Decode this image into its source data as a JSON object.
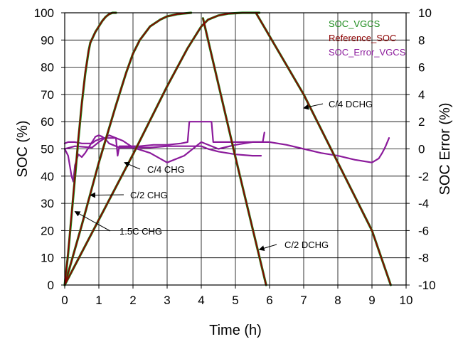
{
  "chart_data": {
    "type": "line",
    "title": "",
    "xlabel": "Time (h)",
    "ylabel": "SOC (%)",
    "y2label": "SOC Error (%)",
    "xlim": [
      0,
      10
    ],
    "ylim": [
      0,
      100
    ],
    "y2lim": [
      -10,
      10
    ],
    "x_ticks": [
      "0",
      "1",
      "2",
      "3",
      "4",
      "5",
      "6",
      "7",
      "8",
      "9",
      "10"
    ],
    "y_ticks": [
      "0",
      "10",
      "20",
      "30",
      "40",
      "50",
      "60",
      "70",
      "80",
      "90",
      "100"
    ],
    "y2_ticks": [
      "-10",
      "-8",
      "-6",
      "-4",
      "-2",
      "0",
      "2",
      "4",
      "6",
      "8",
      "10"
    ],
    "grid": true,
    "legend_position": "top-right",
    "colors": {
      "SOC_VGCS": "#1b8a1b",
      "Reference_SOC": "#8b0000",
      "SOC_Error_VGCS": "#8b1a9b",
      "grid": "#000000"
    },
    "legend": [
      "SOC_VGCS",
      "Reference_SOC",
      "SOC_Error_VGCS"
    ],
    "annotations": [
      {
        "text": "1.5C CHG",
        "anchor_x": 0.3,
        "anchor_y": 27
      },
      {
        "text": "C/2 CHG",
        "anchor_x": 0.75,
        "anchor_y": 33
      },
      {
        "text": "C/4 CHG",
        "anchor_x": 1.75,
        "anchor_y": 45
      },
      {
        "text": "C/4 DCHG",
        "anchor_x": 7.0,
        "anchor_y": 65
      },
      {
        "text": "C/2 DCHG",
        "anchor_x": 5.7,
        "anchor_y": 13
      }
    ],
    "series": [
      {
        "name": "Reference_SOC",
        "axis": "left",
        "segments": [
          {
            "x": [
              0,
              0.1,
              0.2,
              0.3,
              0.4,
              0.5,
              0.6,
              0.7,
              0.75,
              0.9,
              1.0,
              1.1,
              1.2,
              1.3,
              1.4,
              1.5
            ],
            "y": [
              0,
              12,
              26,
              40,
              54,
              67,
              78,
              86,
              89,
              93,
              95,
              97,
              98.5,
              99.5,
              100,
              100
            ]
          },
          {
            "x": [
              0,
              0.5,
              1.0,
              1.5,
              1.8,
              2.0,
              2.2,
              2.5,
              2.8,
              3.0,
              3.3,
              3.7
            ],
            "y": [
              0,
              22,
              45,
              66,
              78,
              85,
              90,
              95,
              97.5,
              98.7,
              99.5,
              100
            ]
          },
          {
            "x": [
              0,
              1.0,
              2.0,
              3.0,
              3.6,
              3.9,
              4.0,
              4.2,
              4.5,
              4.8,
              5.2,
              5.7
            ],
            "y": [
              0,
              24,
              48,
              73,
              87,
              93,
              95,
              97.5,
              99,
              99.7,
              100,
              100
            ]
          },
          {
            "x": [
              4.05,
              5.0,
              5.9
            ],
            "y": [
              98,
              47,
              0
            ]
          },
          {
            "x": [
              5.6,
              7.0,
              8.0,
              9.0,
              9.55
            ],
            "y": [
              100,
              70,
              45,
              20,
              0
            ]
          }
        ]
      },
      {
        "name": "SOC_VGCS",
        "axis": "left",
        "segments": [
          {
            "x": [
              0,
              0.1,
              0.2,
              0.3,
              0.4,
              0.5,
              0.6,
              0.7,
              0.75,
              0.9,
              1.0,
              1.1,
              1.2,
              1.3,
              1.4,
              1.5
            ],
            "y": [
              0,
              11.5,
              25.5,
              39.5,
              53.5,
              66.5,
              77.5,
              86,
              89,
              93,
              95,
              97,
              98.5,
              99.5,
              100,
              100
            ]
          },
          {
            "x": [
              0,
              0.5,
              1.0,
              1.5,
              1.8,
              2.0,
              2.2,
              2.5,
              2.8,
              3.0,
              3.3,
              3.7
            ],
            "y": [
              0,
              22,
              45,
              66,
              78,
              85,
              90,
              95,
              97.5,
              98.7,
              99.5,
              100
            ]
          },
          {
            "x": [
              0,
              1.0,
              2.0,
              3.0,
              3.6,
              3.9,
              4.0,
              4.2,
              4.5,
              4.8,
              5.2,
              5.7
            ],
            "y": [
              0,
              24,
              48,
              73,
              87,
              93,
              95,
              97.5,
              99,
              99.7,
              100,
              100
            ]
          },
          {
            "x": [
              4.05,
              5.0,
              5.9
            ],
            "y": [
              98,
              47,
              0
            ]
          },
          {
            "x": [
              5.6,
              7.0,
              8.0,
              9.0,
              9.55
            ],
            "y": [
              100,
              70,
              45,
              20,
              0
            ]
          }
        ]
      },
      {
        "name": "SOC_Error_VGCS",
        "axis": "right",
        "segments": [
          {
            "x": [
              0,
              0.1,
              0.2,
              0.25,
              0.3,
              0.4,
              0.5,
              0.6,
              0.7,
              0.8,
              0.9,
              1.0,
              1.1,
              1.2,
              1.3,
              1.5,
              1.6,
              1.7,
              2.0,
              2.5,
              3.0,
              3.5,
              3.9,
              4.0,
              4.2,
              4.5,
              5.0,
              5.5,
              5.75
            ],
            "y": [
              0,
              -0.5,
              -2,
              -2.4,
              -1.2,
              -0.4,
              -0.6,
              -0.3,
              0.1,
              0.5,
              0.9,
              1.0,
              0.9,
              0.7,
              0.4,
              0.2,
              0.1,
              0.1,
              0.1,
              0.1,
              0.2,
              0.2,
              0.2,
              0.2,
              0.0,
              -0.2,
              -0.4,
              -0.5,
              -0.5
            ]
          },
          {
            "x": [
              0,
              0.1,
              0.3,
              0.5,
              0.7,
              0.8,
              0.9,
              1.0,
              1.1,
              1.3,
              1.5,
              1.55,
              1.6,
              1.8,
              2.2,
              2.6,
              3.0,
              3.4,
              3.6,
              3.65,
              3.7,
              4.0,
              4.3,
              4.35,
              4.4,
              5.0,
              5.5,
              5.8,
              5.85
            ],
            "y": [
              0.4,
              0.5,
              0.5,
              0.4,
              0.4,
              0.4,
              0.6,
              0.7,
              0.8,
              0.8,
              0.8,
              -0.5,
              0.2,
              0.2,
              0.2,
              0.3,
              0.3,
              0.4,
              0.5,
              2.0,
              2.0,
              2.0,
              2.0,
              0.5,
              0.5,
              0.5,
              0.5,
              0.5,
              1.2
            ]
          },
          {
            "x": [
              0,
              0.3,
              0.8,
              1.0,
              1.3,
              1.7,
              2.0,
              2.5,
              3.0,
              3.5,
              4.0,
              4.5,
              5.0,
              5.5,
              6.0,
              6.5,
              7.0,
              7.5,
              8.0,
              8.5,
              9.0,
              9.2,
              9.3,
              9.4,
              9.5
            ],
            "y": [
              0.0,
              0.2,
              0.1,
              0.5,
              1.0,
              0.6,
              0.1,
              -0.3,
              -1.0,
              -0.5,
              0.5,
              0.0,
              0.3,
              0.5,
              0.5,
              0.3,
              0.0,
              -0.3,
              -0.5,
              -0.8,
              -1.0,
              -0.7,
              -0.3,
              0.2,
              0.8
            ]
          }
        ]
      }
    ]
  }
}
